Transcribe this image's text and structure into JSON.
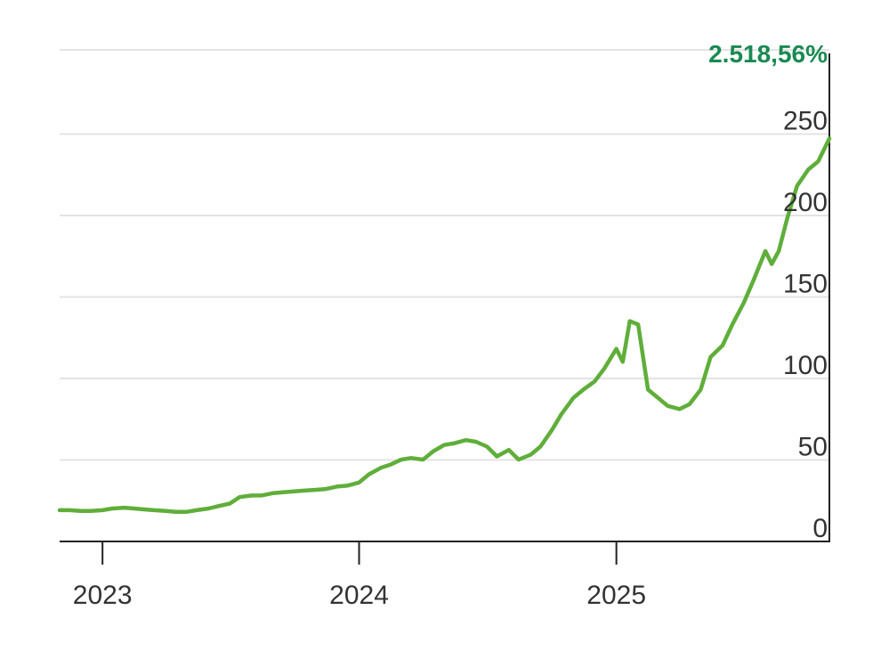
{
  "chart_data": {
    "type": "line",
    "title": "",
    "xlabel": "",
    "ylabel": "",
    "latest_value_label": "2.518,56%",
    "x_tick_labels": [
      "2023",
      "2024",
      "2025"
    ],
    "y_tick_labels": [
      "0",
      "50",
      "100",
      "150",
      "200",
      "250"
    ],
    "xlim": [
      "2022-11-01",
      "2025-10-31"
    ],
    "ylim": [
      0,
      280
    ],
    "y_axis_position": "right",
    "grid": true,
    "colors": {
      "line": "#5fae3a",
      "callout": "#1a8a52",
      "axis": "#222222",
      "grid": "#e3e3e3"
    },
    "series": [
      {
        "x": [
          "2022-11-01",
          "2022-11-15",
          "2022-12-01",
          "2022-12-15",
          "2023-01-01",
          "2023-01-15",
          "2023-02-01",
          "2023-02-15",
          "2023-03-01",
          "2023-03-15",
          "2023-04-01",
          "2023-04-15",
          "2023-05-01",
          "2023-05-15",
          "2023-06-01",
          "2023-06-15",
          "2023-07-01",
          "2023-07-15",
          "2023-08-01",
          "2023-08-15",
          "2023-09-01",
          "2023-09-15",
          "2023-10-01",
          "2023-10-15",
          "2023-11-01",
          "2023-11-15",
          "2023-12-01",
          "2023-12-15",
          "2024-01-01",
          "2024-01-15",
          "2024-02-01",
          "2024-02-15",
          "2024-03-01",
          "2024-03-15",
          "2024-04-01",
          "2024-04-15",
          "2024-05-01",
          "2024-05-15",
          "2024-06-01",
          "2024-06-15",
          "2024-07-01",
          "2024-07-15",
          "2024-08-01",
          "2024-08-15",
          "2024-09-01",
          "2024-09-15",
          "2024-10-01",
          "2024-10-15",
          "2024-11-01",
          "2024-11-15",
          "2024-12-01",
          "2024-12-15",
          "2025-01-01",
          "2025-01-10",
          "2025-01-20",
          "2025-02-01",
          "2025-02-15",
          "2025-03-01",
          "2025-03-15",
          "2025-04-01",
          "2025-04-15",
          "2025-05-01",
          "2025-05-15",
          "2025-06-01",
          "2025-06-15",
          "2025-07-01",
          "2025-07-15",
          "2025-08-01",
          "2025-08-10",
          "2025-08-20",
          "2025-09-01",
          "2025-09-15",
          "2025-10-01",
          "2025-10-15",
          "2025-10-31"
        ],
        "values": [
          11,
          11,
          10.5,
          10.5,
          11,
          12,
          12.5,
          12,
          11.5,
          11,
          10.5,
          10,
          10,
          11,
          12,
          13.5,
          15,
          19,
          20,
          20,
          21.5,
          22,
          22.5,
          23,
          23.5,
          24,
          25.5,
          26,
          28,
          33,
          37,
          39,
          42,
          43,
          42,
          47,
          51,
          52,
          54,
          53,
          50,
          44,
          48,
          42,
          45,
          50,
          60,
          70,
          80,
          85,
          90,
          98,
          110,
          102,
          127,
          125,
          85,
          80,
          75,
          73,
          76,
          85,
          105,
          112,
          125,
          138,
          152,
          170,
          162,
          170,
          190,
          210,
          220,
          225,
          239
        ]
      }
    ]
  }
}
